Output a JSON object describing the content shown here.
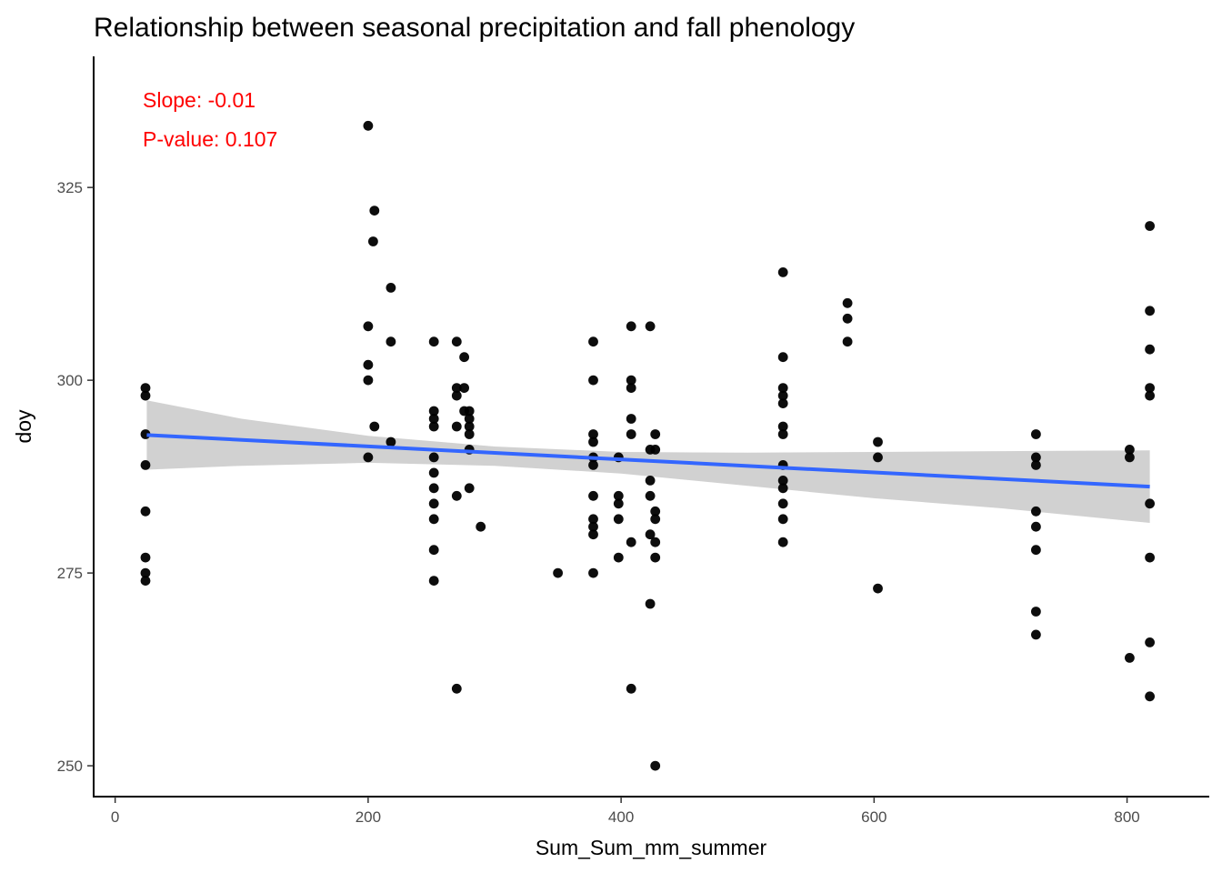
{
  "chart_data": {
    "type": "scatter",
    "title": "Relationship between seasonal precipitation and fall phenology",
    "xlabel": "Sum_Sum_mm_summer",
    "ylabel": "doy",
    "xlim": [
      -17,
      865
    ],
    "ylim": [
      246,
      342
    ],
    "xticks": [
      "0",
      "200",
      "400",
      "600",
      "800"
    ],
    "yticks": [
      "250",
      "275",
      "300",
      "325"
    ],
    "grid": false,
    "legend": "none",
    "point_color": "#000000",
    "annotations": [
      {
        "text": "Slope: -0.01",
        "color": "#ff0000"
      },
      {
        "text": "P-value: 0.107",
        "color": "#ff0000"
      }
    ],
    "trend_line": {
      "color": "#3366ff",
      "x": [
        25,
        818
      ],
      "y": [
        292.9,
        286.2
      ]
    },
    "confidence_band": {
      "color": "#cccccc",
      "x": [
        25,
        100,
        200,
        300,
        400,
        500,
        600,
        700,
        818
      ],
      "upper": [
        297.4,
        295.0,
        292.8,
        291.4,
        290.7,
        290.6,
        290.7,
        290.8,
        290.9
      ],
      "lower": [
        288.4,
        288.9,
        289.3,
        288.9,
        287.9,
        286.3,
        284.7,
        283.4,
        281.5
      ]
    },
    "points": [
      {
        "x": 24,
        "y": 299
      },
      {
        "x": 24,
        "y": 298
      },
      {
        "x": 24,
        "y": 293
      },
      {
        "x": 24,
        "y": 289
      },
      {
        "x": 24,
        "y": 283
      },
      {
        "x": 24,
        "y": 277
      },
      {
        "x": 24,
        "y": 275
      },
      {
        "x": 24,
        "y": 274
      },
      {
        "x": 200,
        "y": 333
      },
      {
        "x": 200,
        "y": 307
      },
      {
        "x": 200,
        "y": 302
      },
      {
        "x": 200,
        "y": 300
      },
      {
        "x": 200,
        "y": 290
      },
      {
        "x": 205,
        "y": 322
      },
      {
        "x": 204,
        "y": 318
      },
      {
        "x": 205,
        "y": 294
      },
      {
        "x": 218,
        "y": 312
      },
      {
        "x": 218,
        "y": 305
      },
      {
        "x": 218,
        "y": 292
      },
      {
        "x": 252,
        "y": 305
      },
      {
        "x": 252,
        "y": 296
      },
      {
        "x": 252,
        "y": 295
      },
      {
        "x": 252,
        "y": 294
      },
      {
        "x": 252,
        "y": 290
      },
      {
        "x": 252,
        "y": 288
      },
      {
        "x": 252,
        "y": 286
      },
      {
        "x": 252,
        "y": 284
      },
      {
        "x": 252,
        "y": 282
      },
      {
        "x": 252,
        "y": 278
      },
      {
        "x": 252,
        "y": 274
      },
      {
        "x": 270,
        "y": 305
      },
      {
        "x": 270,
        "y": 299
      },
      {
        "x": 270,
        "y": 298
      },
      {
        "x": 270,
        "y": 294
      },
      {
        "x": 270,
        "y": 285
      },
      {
        "x": 270,
        "y": 260
      },
      {
        "x": 276,
        "y": 303
      },
      {
        "x": 276,
        "y": 299
      },
      {
        "x": 276,
        "y": 296
      },
      {
        "x": 280,
        "y": 296
      },
      {
        "x": 280,
        "y": 295
      },
      {
        "x": 280,
        "y": 294
      },
      {
        "x": 280,
        "y": 293
      },
      {
        "x": 280,
        "y": 291
      },
      {
        "x": 280,
        "y": 286
      },
      {
        "x": 289,
        "y": 281
      },
      {
        "x": 350,
        "y": 275
      },
      {
        "x": 378,
        "y": 305
      },
      {
        "x": 378,
        "y": 300
      },
      {
        "x": 378,
        "y": 293
      },
      {
        "x": 378,
        "y": 292
      },
      {
        "x": 378,
        "y": 290
      },
      {
        "x": 378,
        "y": 289
      },
      {
        "x": 378,
        "y": 285
      },
      {
        "x": 378,
        "y": 282
      },
      {
        "x": 378,
        "y": 281
      },
      {
        "x": 378,
        "y": 280
      },
      {
        "x": 378,
        "y": 275
      },
      {
        "x": 398,
        "y": 290
      },
      {
        "x": 398,
        "y": 285
      },
      {
        "x": 398,
        "y": 284
      },
      {
        "x": 398,
        "y": 282
      },
      {
        "x": 398,
        "y": 277
      },
      {
        "x": 408,
        "y": 307
      },
      {
        "x": 408,
        "y": 300
      },
      {
        "x": 408,
        "y": 299
      },
      {
        "x": 408,
        "y": 295
      },
      {
        "x": 408,
        "y": 293
      },
      {
        "x": 408,
        "y": 279
      },
      {
        "x": 408,
        "y": 260
      },
      {
        "x": 423,
        "y": 307
      },
      {
        "x": 423,
        "y": 291
      },
      {
        "x": 423,
        "y": 287
      },
      {
        "x": 423,
        "y": 285
      },
      {
        "x": 423,
        "y": 280
      },
      {
        "x": 423,
        "y": 271
      },
      {
        "x": 427,
        "y": 293
      },
      {
        "x": 427,
        "y": 291
      },
      {
        "x": 427,
        "y": 283
      },
      {
        "x": 427,
        "y": 282
      },
      {
        "x": 427,
        "y": 279
      },
      {
        "x": 427,
        "y": 277
      },
      {
        "x": 427,
        "y": 250
      },
      {
        "x": 528,
        "y": 314
      },
      {
        "x": 528,
        "y": 303
      },
      {
        "x": 528,
        "y": 299
      },
      {
        "x": 528,
        "y": 298
      },
      {
        "x": 528,
        "y": 297
      },
      {
        "x": 528,
        "y": 294
      },
      {
        "x": 528,
        "y": 293
      },
      {
        "x": 528,
        "y": 289
      },
      {
        "x": 528,
        "y": 287
      },
      {
        "x": 528,
        "y": 286
      },
      {
        "x": 528,
        "y": 284
      },
      {
        "x": 528,
        "y": 282
      },
      {
        "x": 528,
        "y": 279
      },
      {
        "x": 579,
        "y": 310
      },
      {
        "x": 579,
        "y": 308
      },
      {
        "x": 579,
        "y": 305
      },
      {
        "x": 603,
        "y": 292
      },
      {
        "x": 603,
        "y": 290
      },
      {
        "x": 603,
        "y": 273
      },
      {
        "x": 728,
        "y": 293
      },
      {
        "x": 728,
        "y": 290
      },
      {
        "x": 728,
        "y": 289
      },
      {
        "x": 728,
        "y": 283
      },
      {
        "x": 728,
        "y": 281
      },
      {
        "x": 728,
        "y": 278
      },
      {
        "x": 728,
        "y": 270
      },
      {
        "x": 728,
        "y": 267
      },
      {
        "x": 802,
        "y": 291
      },
      {
        "x": 802,
        "y": 290
      },
      {
        "x": 802,
        "y": 264
      },
      {
        "x": 818,
        "y": 320
      },
      {
        "x": 818,
        "y": 309
      },
      {
        "x": 818,
        "y": 304
      },
      {
        "x": 818,
        "y": 299
      },
      {
        "x": 818,
        "y": 298
      },
      {
        "x": 818,
        "y": 284
      },
      {
        "x": 818,
        "y": 277
      },
      {
        "x": 818,
        "y": 266
      },
      {
        "x": 818,
        "y": 259
      }
    ]
  }
}
